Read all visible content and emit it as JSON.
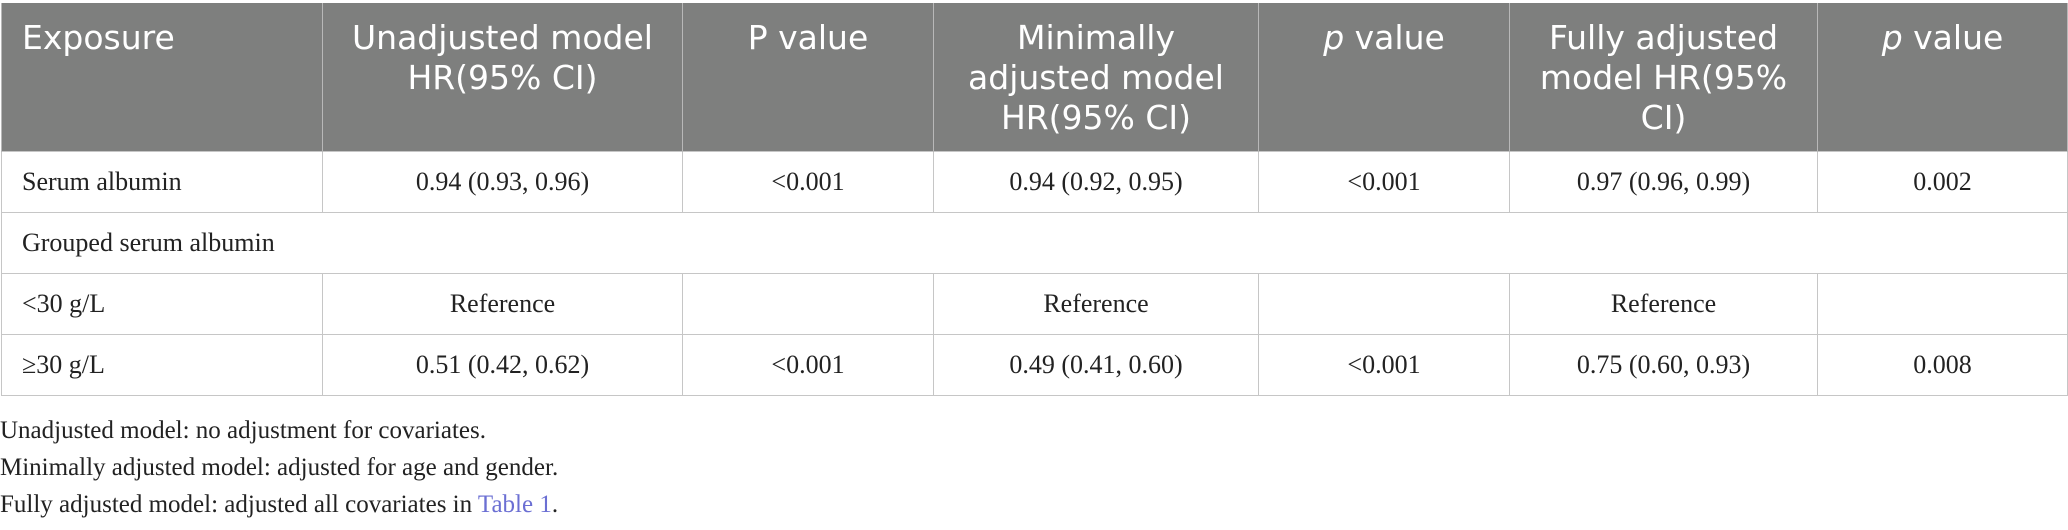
{
  "table": {
    "headers": [
      {
        "pre": "Exposure",
        "em": "",
        "post": ""
      },
      {
        "pre": "Unadjusted model HR(95% CI)",
        "em": "",
        "post": ""
      },
      {
        "pre": "P value",
        "em": "",
        "post": ""
      },
      {
        "pre": "Minimally adjusted model HR(95% CI)",
        "em": "",
        "post": ""
      },
      {
        "pre": "",
        "em": "p",
        "post": " value"
      },
      {
        "pre": "Fully adjusted model HR(95% CI)",
        "em": "",
        "post": ""
      },
      {
        "pre": "",
        "em": "p",
        "post": " value"
      }
    ],
    "rows": [
      {
        "type": "data",
        "cells": [
          "Serum albumin",
          "0.94 (0.93, 0.96)",
          "<0.001",
          "0.94 (0.92, 0.95)",
          "<0.001",
          "0.97 (0.96, 0.99)",
          "0.002"
        ]
      },
      {
        "type": "group",
        "label": "Grouped serum albumin"
      },
      {
        "type": "data",
        "cells": [
          "<30 g/L",
          "Reference",
          "",
          "Reference",
          "",
          "Reference",
          ""
        ]
      },
      {
        "type": "data",
        "cells": [
          "≥30 g/L",
          "0.51 (0.42, 0.62)",
          "<0.001",
          "0.49 (0.41, 0.60)",
          "<0.001",
          "0.75 (0.60, 0.93)",
          "0.008"
        ]
      }
    ]
  },
  "notes": {
    "line1": "Unadjusted model: no adjustment for covariates.",
    "line2": "Minimally adjusted model: adjusted for age and gender.",
    "line3_pre": "Fully adjusted model: adjusted all covariates in ",
    "line3_link": "Table 1",
    "line3_post": "."
  },
  "colors": {
    "header_bg": "#7e7f7e",
    "header_text": "#ffffff",
    "link": "#6b6fd3",
    "border": "#c6c6c6"
  }
}
